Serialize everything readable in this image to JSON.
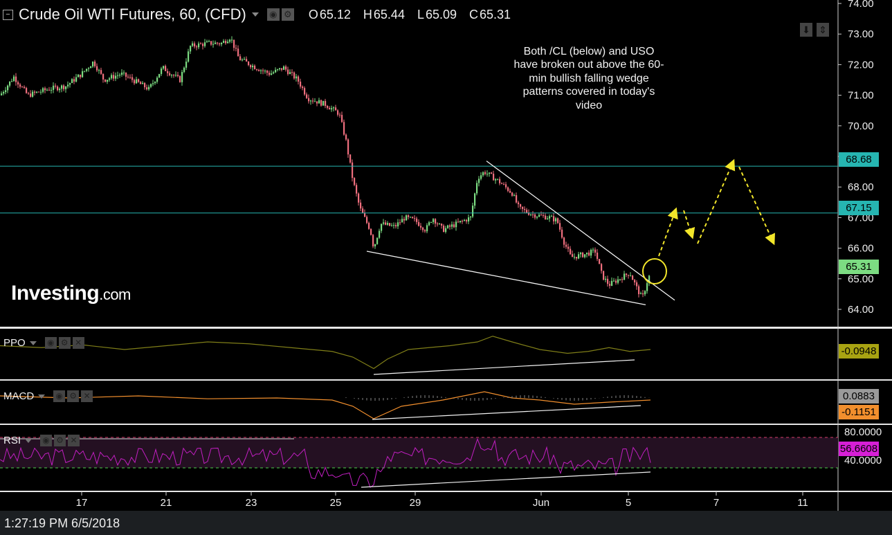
{
  "header": {
    "title": "Crude Oil WTI Futures, 60, (CFD)",
    "open_label": "O",
    "open": "65.12",
    "high_label": "H",
    "high": "65.44",
    "low_label": "L",
    "low": "65.09",
    "close_label": "C",
    "close": "65.31"
  },
  "annotation": "Both /CL (below) and USO have broken out above the 60-min bullish falling wedge patterns covered in today's video",
  "logo": {
    "main": "Investing",
    "suffix": ".com"
  },
  "status": {
    "time": "1:27:19 PM 6/5/2018"
  },
  "panes": {
    "ppo": {
      "label": "PPO",
      "value": "-0.0948"
    },
    "macd": {
      "label": "MACD",
      "value1": "0.0883",
      "value2": "-0.1151"
    },
    "rsi": {
      "label": "RSI",
      "value": "56.6608",
      "ticks": [
        "80.0000",
        "40.0000"
      ]
    }
  },
  "colors": {
    "up": "#7cdc82",
    "down": "#ef6f7e",
    "level": "#26b5b1",
    "arrow": "#f2e62a",
    "ppo": "#807f18",
    "macd": "#f28f2d",
    "rsi": "#c21fc2",
    "band": "#241022"
  },
  "chart_data": [
    {
      "type": "candlestick",
      "title": "Crude Oil WTI Futures, 60, (CFD)",
      "price_ticks": [
        "74.00",
        "73.00",
        "72.00",
        "71.00",
        "70.00",
        "69.00",
        "68.00",
        "67.00",
        "66.00",
        "65.00",
        "64.00"
      ],
      "x_ticks": [
        "17",
        "21",
        "23",
        "25",
        "29",
        "Jun",
        "5",
        "7",
        "11"
      ],
      "horizontal_levels": [
        {
          "value": 68.68,
          "label": "68.68"
        },
        {
          "value": 67.15,
          "label": "67.15"
        }
      ],
      "last_price": {
        "value": 65.31,
        "label": "65.31"
      },
      "key_points": [
        {
          "date": "May 15",
          "price": 71.0
        },
        {
          "date": "May 17",
          "price": 71.3
        },
        {
          "date": "May 18",
          "price": 71.8
        },
        {
          "date": "May 21",
          "price": 72.3
        },
        {
          "date": "May 22",
          "price": 72.8
        },
        {
          "date": "May 23",
          "price": 71.9
        },
        {
          "date": "May 24",
          "price": 70.8
        },
        {
          "date": "May 25",
          "price": 67.5
        },
        {
          "date": "May 26",
          "price": 65.95
        },
        {
          "date": "May 29",
          "price": 66.8
        },
        {
          "date": "May 31",
          "price": 67.0
        },
        {
          "date": "Jun 1",
          "price": 68.4
        },
        {
          "date": "Jun 3",
          "price": 67.0
        },
        {
          "date": "Jun 4",
          "price": 65.7
        },
        {
          "date": "Jun 5",
          "price": 64.35
        },
        {
          "date": "Jun 5",
          "price": 65.31
        }
      ],
      "trendlines": [
        "falling wedge upper",
        "falling wedge lower"
      ],
      "projection": "yellow dashed arrows up to 68.68 then down"
    },
    {
      "type": "line",
      "name": "PPO",
      "last": -0.0948
    },
    {
      "type": "line",
      "name": "MACD",
      "last": [
        0.0883,
        -0.1151
      ]
    },
    {
      "type": "line",
      "name": "RSI",
      "levels": [
        80,
        40
      ],
      "last": 56.6608
    }
  ]
}
